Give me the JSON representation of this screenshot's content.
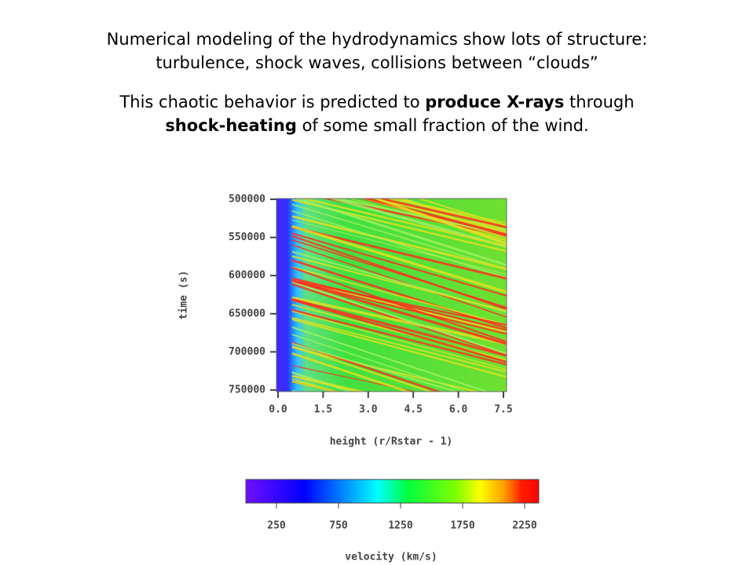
{
  "heading": {
    "line1": "Numerical modeling of the hydrodynamics show lots of structure:",
    "line2": "turbulence, shock waves, collisions between “clouds”"
  },
  "paragraph": {
    "part1": "This chaotic behavior is predicted to ",
    "bold1": "produce X-rays",
    "part2": " through",
    "bold2": "shock-heating",
    "part3": " of some small fraction of the wind."
  },
  "figure": {
    "y_label": "time (s)",
    "x_label": "height (r/Rstar - 1)",
    "yticks": [
      500000,
      550000,
      600000,
      650000,
      700000,
      750000
    ],
    "xticks": [
      "0.0",
      "1.5",
      "3.0",
      "4.5",
      "6.0",
      "7.5"
    ],
    "colorbar": {
      "ticks": [
        250,
        750,
        1250,
        1750,
        2250
      ],
      "label": "velocity (km/s)"
    }
  }
}
